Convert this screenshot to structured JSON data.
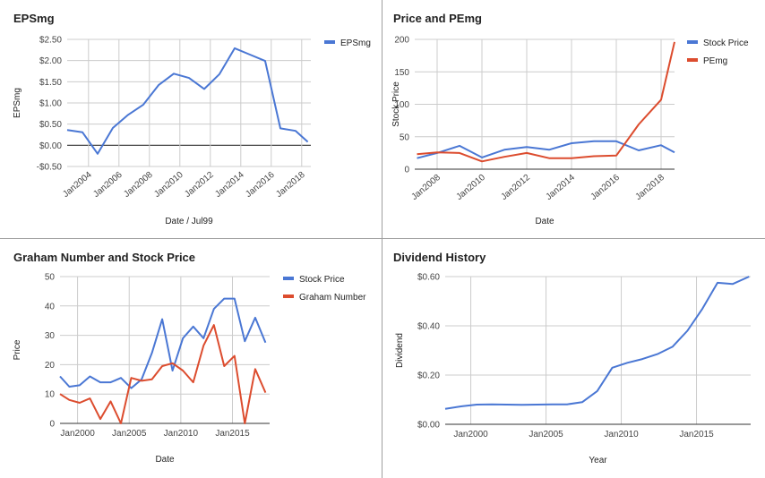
{
  "colors": {
    "blue": "#4a77d4",
    "red": "#dc4c2e",
    "grid": "#cccccc",
    "zero": "#333333"
  },
  "chart_data": [
    {
      "type": "line",
      "title": "EPSmg",
      "xlabel": "Date / Jul99",
      "ylabel": "EPSmg",
      "xlim": [
        2002.6,
        2018.6
      ],
      "ylim": [
        -0.5,
        2.5
      ],
      "yticks": [
        2.5,
        2.0,
        1.5,
        1.0,
        0.5,
        0.0,
        -0.5
      ],
      "ytick_labels": [
        "$2.50",
        "$2.00",
        "$1.50",
        "$1.00",
        "$0.50",
        "$0.00",
        "-$0.50"
      ],
      "xticks": [
        2004,
        2006,
        2008,
        2010,
        2012,
        2014,
        2016,
        2018
      ],
      "xtick_labels": [
        "Jan2004",
        "Jan2006",
        "Jan2008",
        "Jan2010",
        "Jan2012",
        "Jan2014",
        "Jan2016",
        "Jan2018"
      ],
      "xtick_rotated": true,
      "legend_position": "right",
      "zero_line": true,
      "series": [
        {
          "name": "EPSmg",
          "color": "#4a77d4",
          "x": [
            2002.6,
            2003.6,
            2004.6,
            2005.6,
            2006.6,
            2007.6,
            2008.6,
            2009.6,
            2010.6,
            2011.6,
            2012.6,
            2013.6,
            2014.6,
            2015.6,
            2016.6,
            2017.6,
            2018.4
          ],
          "y": [
            0.36,
            0.31,
            -0.2,
            0.41,
            0.72,
            0.96,
            1.42,
            1.69,
            1.59,
            1.33,
            1.68,
            2.29,
            2.14,
            1.99,
            0.4,
            0.34,
            0.08
          ]
        }
      ]
    },
    {
      "type": "line",
      "title": "Price and PEmg",
      "xlabel": "Date",
      "ylabel": "Stock Price",
      "xlim": [
        2007,
        2018.6
      ],
      "ylim": [
        0,
        200
      ],
      "yticks": [
        200,
        150,
        100,
        50,
        0
      ],
      "ytick_labels": [
        "200",
        "150",
        "100",
        "50",
        "0"
      ],
      "xticks": [
        2008,
        2010,
        2012,
        2014,
        2016,
        2018
      ],
      "xtick_labels": [
        "Jan2008",
        "Jan2010",
        "Jan2012",
        "Jan2014",
        "Jan2016",
        "Jan2018"
      ],
      "xtick_rotated": true,
      "legend_position": "right",
      "series": [
        {
          "name": "Stock Price",
          "color": "#4a77d4",
          "x": [
            2007.1,
            2008.0,
            2009.0,
            2010.0,
            2011.0,
            2012.0,
            2013.0,
            2014.0,
            2015.0,
            2016.0,
            2017.0,
            2018.0,
            2018.6
          ],
          "y": [
            17,
            25,
            36,
            18,
            30,
            34,
            30,
            40,
            43,
            43,
            29,
            37,
            26
          ]
        },
        {
          "name": "PEmg",
          "color": "#dc4c2e",
          "x": [
            2007.1,
            2008.0,
            2009.0,
            2010.0,
            2011.0,
            2012.0,
            2013.0,
            2014.0,
            2015.0,
            2016.0,
            2017.0,
            2018.0,
            2018.6
          ],
          "y": [
            23,
            26,
            25,
            12,
            19,
            25,
            17,
            17,
            20,
            21,
            69,
            107,
            196
          ]
        }
      ]
    },
    {
      "type": "line",
      "title": "Graham Number and Stock Price",
      "xlabel": "Date",
      "ylabel": "Price",
      "xlim": [
        1998.3,
        2018.6
      ],
      "ylim": [
        0,
        50
      ],
      "yticks": [
        50,
        40,
        30,
        20,
        10,
        0
      ],
      "ytick_labels": [
        "50",
        "40",
        "30",
        "20",
        "10",
        "0"
      ],
      "xticks": [
        2000,
        2005,
        2010,
        2015
      ],
      "xtick_labels": [
        "Jan2000",
        "Jan2005",
        "Jan2010",
        "Jan2015"
      ],
      "xtick_rotated": false,
      "legend_position": "right",
      "series": [
        {
          "name": "Stock Price",
          "color": "#4a77d4",
          "x": [
            1998.3,
            1999.2,
            2000.2,
            2001.2,
            2002.2,
            2003.2,
            2004.2,
            2005.2,
            2006.2,
            2007.2,
            2008.2,
            2009.2,
            2010.2,
            2011.2,
            2012.2,
            2013.2,
            2014.2,
            2015.2,
            2016.2,
            2017.2,
            2018.2
          ],
          "y": [
            16,
            12.5,
            13,
            16,
            14,
            14,
            15.5,
            12,
            15,
            24,
            35.5,
            18,
            29,
            33,
            29,
            39,
            42.5,
            42.5,
            28,
            36,
            27.5
          ]
        },
        {
          "name": "Graham Number",
          "color": "#dc4c2e",
          "x": [
            1998.3,
            1999.2,
            2000.2,
            2001.2,
            2002.2,
            2003.2,
            2004.2,
            2005.2,
            2006.2,
            2007.2,
            2008.2,
            2009.2,
            2010.2,
            2011.2,
            2012.2,
            2013.2,
            2014.2,
            2015.2,
            2016.2,
            2017.2,
            2018.2
          ],
          "y": [
            10,
            8,
            7,
            8.5,
            1.5,
            7.5,
            0,
            15.5,
            14.5,
            15,
            19.5,
            20.5,
            18,
            14,
            26.5,
            33.5,
            19.5,
            23,
            0,
            18.5,
            10.5
          ]
        }
      ]
    },
    {
      "type": "line",
      "title": "Dividend History",
      "xlabel": "Year",
      "ylabel": "Dividend",
      "xlim": [
        1998.3,
        2018.6
      ],
      "ylim": [
        0,
        0.6
      ],
      "yticks": [
        0.6,
        0.4,
        0.2,
        0.0
      ],
      "ytick_labels": [
        "$0.60",
        "$0.40",
        "$0.20",
        "$0.00"
      ],
      "xticks": [
        2000,
        2005,
        2010,
        2015
      ],
      "xtick_labels": [
        "Jan2000",
        "Jan2005",
        "Jan2010",
        "Jan2015"
      ],
      "xtick_rotated": false,
      "legend_position": "none",
      "series": [
        {
          "name": "",
          "color": "#4a77d4",
          "x": [
            1998.3,
            1999.4,
            2000.4,
            2001.4,
            2002.4,
            2003.4,
            2004.4,
            2005.4,
            2006.4,
            2007.4,
            2008.4,
            2009.4,
            2010.4,
            2011.4,
            2012.4,
            2013.4,
            2014.4,
            2015.4,
            2016.4,
            2017.4,
            2018.5
          ],
          "y": [
            0.063,
            0.073,
            0.08,
            0.081,
            0.08,
            0.079,
            0.08,
            0.081,
            0.081,
            0.09,
            0.135,
            0.23,
            0.25,
            0.265,
            0.285,
            0.315,
            0.38,
            0.47,
            0.575,
            0.57,
            0.6
          ]
        }
      ]
    }
  ]
}
